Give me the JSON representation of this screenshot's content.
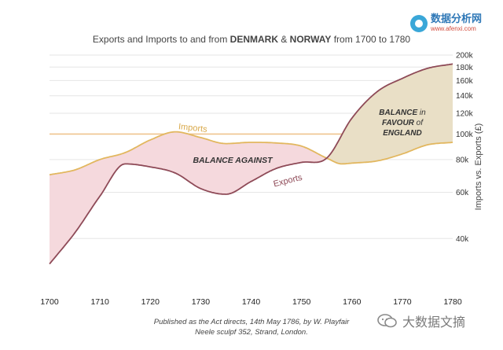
{
  "chart_data": {
    "type": "area",
    "title_parts": [
      "Exports and Imports to and from ",
      "DENMARK",
      " & ",
      "NORWAY",
      " from 1700 to 1780"
    ],
    "ylabel": "Imports vs. Exports (£)",
    "x_ticks": [
      "1700",
      "1710",
      "1720",
      "1730",
      "1740",
      "1750",
      "1760",
      "1770",
      "1780"
    ],
    "y_ticks": [
      "40k",
      "60k",
      "80k",
      "100k",
      "120k",
      "140k",
      "160k",
      "180k",
      "200k"
    ],
    "y_scale": "log",
    "xlim": [
      1700,
      1780
    ],
    "ylim": [
      30000,
      200000
    ],
    "grid": "horizontal",
    "colors": {
      "imports": "#e2b75f",
      "exports": "#8e4a57",
      "against": "#f5d9dd",
      "favour": "#e9dfc6"
    },
    "series": [
      {
        "name": "Imports",
        "x": [
          1700,
          1705,
          1710,
          1715,
          1720,
          1725,
          1730,
          1735,
          1740,
          1745,
          1750,
          1755,
          1758,
          1760,
          1765,
          1770,
          1775,
          1780
        ],
        "values": [
          70000,
          73000,
          80000,
          85000,
          95000,
          102000,
          97000,
          92000,
          93000,
          92500,
          90000,
          81000,
          77000,
          77500,
          79000,
          84000,
          91000,
          93000
        ]
      },
      {
        "name": "Exports",
        "x": [
          1700,
          1705,
          1710,
          1715,
          1720,
          1725,
          1730,
          1735,
          1740,
          1745,
          1750,
          1755,
          1760,
          1765,
          1770,
          1775,
          1780
        ],
        "values": [
          32000,
          42000,
          58000,
          77000,
          75000,
          71000,
          62000,
          59000,
          66000,
          74000,
          78000,
          81000,
          115000,
          145000,
          163000,
          178000,
          185000
        ]
      }
    ],
    "annotations": [
      {
        "label": "Imports"
      },
      {
        "label": "Exports"
      },
      {
        "label": "BALANCE AGAINST"
      },
      {
        "lines": [
          [
            "BALANCE",
            " in"
          ],
          [
            "FAVOUR",
            " of"
          ],
          [
            "ENGLAND",
            ""
          ]
        ]
      }
    ],
    "caption": [
      "Published as the Act directs, 14th May 1786, by W. Playfair",
      "Neele sculpf 352, Strand, London."
    ]
  },
  "branding": {
    "logo_cn": "数据分析网",
    "logo_url": "www.afenxi.com",
    "watermark": "大数据文摘"
  }
}
